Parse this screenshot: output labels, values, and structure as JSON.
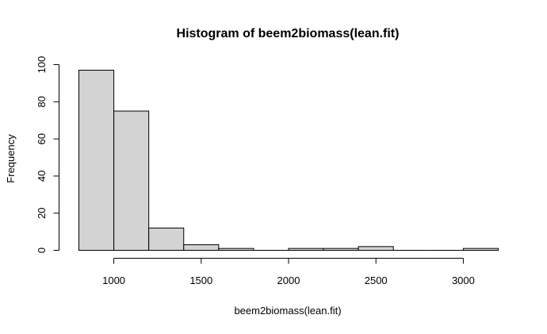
{
  "chart_data": {
    "type": "bar",
    "title": "Histogram of beem2biomass(lean.fit)",
    "xlabel": "beem2biomass(lean.fit)",
    "ylabel": "Frequency",
    "bins": [
      {
        "x0": 800,
        "x1": 1000,
        "count": 97
      },
      {
        "x0": 1000,
        "x1": 1200,
        "count": 75
      },
      {
        "x0": 1200,
        "x1": 1400,
        "count": 12
      },
      {
        "x0": 1400,
        "x1": 1600,
        "count": 3
      },
      {
        "x0": 1600,
        "x1": 1800,
        "count": 1
      },
      {
        "x0": 1800,
        "x1": 2000,
        "count": 0
      },
      {
        "x0": 2000,
        "x1": 2200,
        "count": 1
      },
      {
        "x0": 2200,
        "x1": 2400,
        "count": 1
      },
      {
        "x0": 2400,
        "x1": 2600,
        "count": 2
      },
      {
        "x0": 2600,
        "x1": 2800,
        "count": 0
      },
      {
        "x0": 2800,
        "x1": 3000,
        "count": 0
      },
      {
        "x0": 3000,
        "x1": 3200,
        "count": 1
      }
    ],
    "xlim": [
      800,
      3200
    ],
    "ylim": [
      0,
      100
    ],
    "xticks": [
      1000,
      1500,
      2000,
      2500,
      3000
    ],
    "yticks": [
      0,
      20,
      40,
      60,
      80,
      100
    ],
    "bar_color": "#d3d3d3",
    "edge_color": "#000000",
    "grid": false
  }
}
